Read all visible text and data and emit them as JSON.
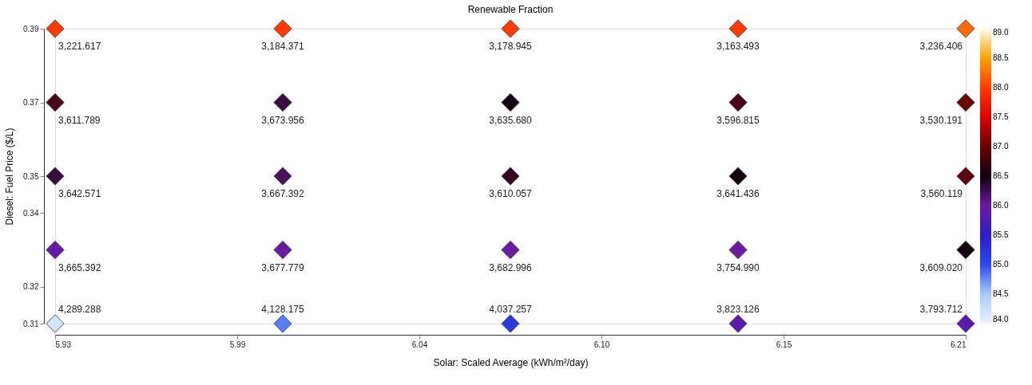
{
  "chart_data": {
    "type": "scatter",
    "title": "Renewable Fraction",
    "xlabel": "Solar: Scaled Average (kWh/m²/day)",
    "ylabel": "Diesel: Fuel Price ($/L)",
    "x": [
      5.93,
      6.0,
      6.07,
      6.14,
      6.21,
      5.93,
      6.0,
      6.07,
      6.14,
      6.21,
      5.93,
      6.0,
      6.07,
      6.14,
      6.21,
      5.93,
      6.0,
      6.07,
      6.14,
      6.21,
      5.93,
      6.0,
      6.07,
      6.14,
      6.21
    ],
    "values": [
      0.39,
      0.39,
      0.39,
      0.39,
      0.39,
      0.37,
      0.37,
      0.37,
      0.37,
      0.37,
      0.35,
      0.35,
      0.35,
      0.35,
      0.35,
      0.33,
      0.33,
      0.33,
      0.33,
      0.33,
      0.31,
      0.31,
      0.31,
      0.31,
      0.31
    ],
    "cvalues": [
      88.0,
      88.0,
      88.0,
      88.0,
      88.2,
      86.8,
      86.3,
      86.5,
      86.8,
      87.0,
      86.3,
      86.2,
      86.7,
      86.5,
      86.9,
      85.9,
      86.0,
      86.0,
      86.0,
      86.5,
      84.2,
      84.8,
      85.2,
      85.8,
      85.8
    ],
    "annotations": [
      {
        "text": "3,221.617",
        "x": 5.93,
        "y": 0.39
      },
      {
        "text": "3,184.371",
        "x": 6.0,
        "y": 0.39
      },
      {
        "text": "3,178.945",
        "x": 6.07,
        "y": 0.39
      },
      {
        "text": "3,163.493",
        "x": 6.14,
        "y": 0.39
      },
      {
        "text": "3,236.406",
        "x": 6.21,
        "y": 0.39
      },
      {
        "text": "3,611.789",
        "x": 5.93,
        "y": 0.37
      },
      {
        "text": "3,673.956",
        "x": 6.0,
        "y": 0.37
      },
      {
        "text": "3,635.680",
        "x": 6.07,
        "y": 0.37
      },
      {
        "text": "3,596.815",
        "x": 6.14,
        "y": 0.37
      },
      {
        "text": "3,530.191",
        "x": 6.21,
        "y": 0.37
      },
      {
        "text": "3,642.571",
        "x": 5.93,
        "y": 0.35
      },
      {
        "text": "3,667.392",
        "x": 6.0,
        "y": 0.35
      },
      {
        "text": "3,610.057",
        "x": 6.07,
        "y": 0.35
      },
      {
        "text": "3,641.436",
        "x": 6.14,
        "y": 0.35
      },
      {
        "text": "3,560.119",
        "x": 6.21,
        "y": 0.35
      },
      {
        "text": "3,665.392",
        "x": 5.93,
        "y": 0.33
      },
      {
        "text": "3,677.779",
        "x": 6.0,
        "y": 0.33
      },
      {
        "text": "3,682.996",
        "x": 6.07,
        "y": 0.33
      },
      {
        "text": "3,754.990",
        "x": 6.14,
        "y": 0.33
      },
      {
        "text": "3,609.020",
        "x": 6.21,
        "y": 0.33
      },
      {
        "text": "4,289.288",
        "x": 5.93,
        "y": 0.31
      },
      {
        "text": "4,128.175",
        "x": 6.0,
        "y": 0.31
      },
      {
        "text": "4,037.257",
        "x": 6.07,
        "y": 0.31
      },
      {
        "text": "3,823.126",
        "x": 6.14,
        "y": 0.31
      },
      {
        "text": "3,793.712",
        "x": 6.21,
        "y": 0.31
      }
    ],
    "xlim": [
      5.93,
      6.21
    ],
    "xticks": [
      5.93,
      {
        "value": 5.986,
        "label": "5.99"
      },
      {
        "value": 6.042,
        "label": "6.04"
      },
      {
        "value": 6.098,
        "label": "6.10"
      },
      {
        "value": 6.154,
        "label": "6.15"
      },
      6.21
    ],
    "ylim": [
      0.31,
      0.39
    ],
    "yticks": [
      0.31,
      0.32,
      0.34,
      0.35,
      0.37,
      0.39
    ],
    "clim": [
      84.0,
      89.0
    ],
    "cticks": [
      {
        "value": 84,
        "label": "84.0"
      },
      84.5,
      {
        "value": 85,
        "label": "85.0"
      },
      85.5,
      {
        "value": 86,
        "label": "86.0"
      },
      86.5,
      {
        "value": 87,
        "label": "87.0"
      },
      87.5,
      {
        "value": 88,
        "label": "88.0"
      },
      88.5,
      {
        "value": 89,
        "label": "89.0"
      }
    ],
    "grid": false,
    "marker": "diamond"
  }
}
